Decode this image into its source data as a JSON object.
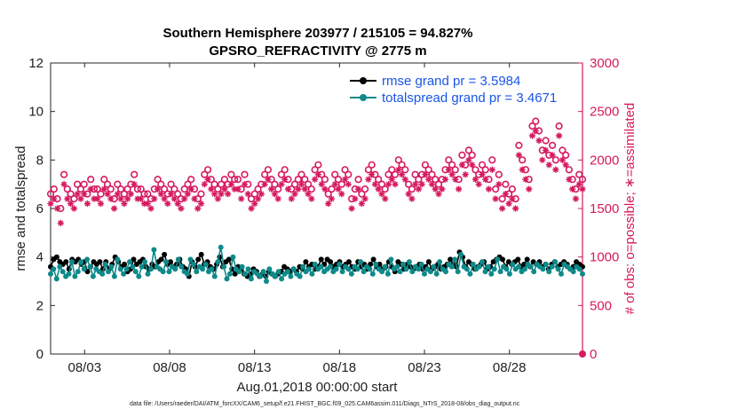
{
  "chart_data": {
    "type": "line",
    "title": "Southern Hemisphere 203977 / 215105 = 94.827%",
    "subtitle": "GPSRO_REFRACTIVITY @ 2775 m",
    "xlabel": "Aug.01,2018 00:00:00 start",
    "ylabel": "rmse and totalspread",
    "y2label": "# of obs: o=possible; ∗=assimilated",
    "footnote": "data file: /Users/raeder/DAI/ATM_forcXX/CAM6_setup/f.e21.FHIST_BGC.f09_025.CAM6assim.011/Diags_NTrS_2018-08/obs_diag_output.nc",
    "x_range_days": [
      1,
      32.3
    ],
    "ylim": [
      0,
      12
    ],
    "y2lim": [
      0,
      3000
    ],
    "x_ticks": [
      {
        "day": 3,
        "label": "08/03"
      },
      {
        "day": 8,
        "label": "08/08"
      },
      {
        "day": 13,
        "label": "08/13"
      },
      {
        "day": 18,
        "label": "08/18"
      },
      {
        "day": 23,
        "label": "08/23"
      },
      {
        "day": 28,
        "label": "08/28"
      }
    ],
    "y_ticks": [
      "0",
      "2",
      "4",
      "6",
      "8",
      "10",
      "12"
    ],
    "y2_ticks": [
      "0",
      "500",
      "1000",
      "1500",
      "2000",
      "2500",
      "3000"
    ],
    "legend_position": "top-right",
    "series": [
      {
        "name": "rmse grand pr = 3.5984",
        "color": "#000000",
        "marker": "dot",
        "axis": "left",
        "values": [
          3.6,
          3.9,
          4.0,
          3.8,
          3.7,
          3.8,
          3.5,
          3.9,
          3.8,
          3.9,
          3.7,
          3.8,
          3.4,
          3.6,
          3.8,
          3.7,
          3.8,
          3.5,
          3.8,
          3.5,
          3.7,
          4.0,
          3.8,
          3.6,
          3.7,
          3.4,
          3.5,
          3.9,
          3.7,
          3.8,
          3.9,
          3.6,
          3.5,
          3.7,
          3.6,
          3.8,
          3.9,
          4.1,
          3.7,
          3.8,
          3.6,
          3.7,
          3.9,
          3.6,
          3.5,
          3.2,
          3.8,
          3.6,
          3.9,
          4.1,
          3.7,
          3.8,
          3.6,
          3.5,
          3.7,
          4.0,
          3.6,
          3.8,
          3.9,
          3.5,
          3.3,
          3.6,
          3.5,
          3.3,
          3.2,
          3.3,
          3.5,
          3.4,
          3.2,
          3.3,
          3.2,
          3.4,
          3.3,
          3.2,
          3.3,
          3.4,
          3.6,
          3.5,
          3.4,
          3.5,
          3.4,
          3.6,
          3.5,
          3.8,
          3.6,
          3.7,
          3.5,
          3.6,
          3.9,
          3.7,
          3.9,
          3.8,
          3.6,
          3.7,
          3.8,
          3.6,
          3.7,
          3.8,
          3.6,
          3.5,
          3.8,
          3.6,
          3.7,
          3.5,
          3.7,
          3.9,
          3.6,
          3.7,
          3.5,
          3.6,
          3.8,
          3.6,
          3.4,
          3.8,
          3.7,
          3.5,
          3.7,
          3.6,
          3.5,
          3.6,
          3.7,
          3.5,
          3.6,
          3.8,
          3.5,
          3.6,
          3.7,
          3.5,
          3.6,
          3.7,
          3.9,
          3.7,
          3.6,
          4.2,
          4.0,
          3.6,
          3.8,
          3.7,
          3.5,
          3.6,
          3.7,
          3.8,
          3.5,
          3.6,
          3.8,
          3.9,
          4.0,
          3.9,
          3.6,
          3.8,
          3.7,
          3.8,
          3.9,
          3.6,
          3.7,
          3.9,
          3.6,
          3.8,
          3.7,
          3.8,
          3.6,
          3.7,
          3.5,
          3.7,
          3.8,
          3.6,
          3.7,
          3.8,
          3.7,
          3.5,
          3.6,
          3.8,
          3.7,
          3.6
        ]
      },
      {
        "name": "totalspread grand pr = 3.4671",
        "color": "#0e8a8a",
        "marker": "dot",
        "axis": "left",
        "values": [
          3.3,
          3.5,
          3.1,
          3.6,
          3.4,
          3.2,
          3.3,
          3.8,
          3.2,
          3.4,
          3.8,
          3.5,
          3.9,
          3.6,
          3.2,
          3.5,
          3.4,
          3.3,
          3.7,
          3.4,
          3.6,
          3.2,
          3.9,
          3.5,
          3.3,
          3.5,
          3.8,
          3.6,
          3.4,
          3.2,
          3.6,
          3.8,
          3.3,
          3.5,
          4.3,
          3.6,
          3.5,
          3.4,
          3.8,
          3.4,
          3.6,
          3.5,
          3.9,
          3.6,
          3.4,
          3.3,
          3.9,
          3.7,
          3.4,
          3.6,
          3.5,
          3.7,
          3.4,
          3.5,
          3.2,
          3.8,
          4.4,
          3.6,
          3.1,
          3.3,
          4.0,
          3.5,
          3.4,
          3.6,
          3.3,
          3.5,
          3.1,
          3.4,
          3.3,
          3.2,
          3.4,
          3.0,
          3.5,
          3.3,
          3.2,
          3.4,
          3.1,
          3.3,
          3.4,
          3.2,
          3.5,
          3.3,
          3.2,
          3.6,
          3.4,
          3.5,
          3.3,
          3.7,
          3.5,
          3.6,
          3.4,
          3.5,
          3.6,
          3.4,
          3.5,
          3.7,
          3.4,
          3.6,
          3.5,
          3.3,
          3.6,
          3.5,
          3.8,
          3.4,
          3.6,
          3.5,
          3.3,
          3.7,
          3.5,
          3.4,
          3.6,
          3.3,
          3.9,
          3.5,
          3.6,
          3.4,
          3.7,
          3.5,
          3.8,
          3.4,
          3.6,
          3.5,
          3.7,
          3.3,
          3.5,
          3.4,
          3.6,
          3.3,
          3.8,
          3.5,
          3.4,
          3.7,
          3.6,
          3.9,
          3.4,
          4.1,
          3.6,
          3.5,
          3.3,
          3.7,
          3.5,
          3.6,
          3.8,
          3.4,
          3.6,
          3.3,
          3.5,
          3.9,
          3.4,
          3.6,
          3.5,
          3.3,
          3.7,
          3.5,
          3.6,
          3.4,
          3.5,
          3.7,
          3.6,
          3.4,
          3.7,
          3.6,
          3.5,
          3.7,
          3.4,
          3.6,
          3.8,
          3.5,
          3.3,
          3.7,
          3.6,
          3.5,
          3.4,
          3.6,
          3.5,
          3.3
        ]
      },
      {
        "name": "possible",
        "color": "#d6195e",
        "marker": "circle",
        "axis": "right",
        "values": [
          1650,
          1700,
          1600,
          1500,
          1850,
          1700,
          1650,
          1600,
          1750,
          1700,
          1750,
          1650,
          1800,
          1700,
          1700,
          1650,
          1800,
          1750,
          1700,
          1600,
          1750,
          1700,
          1650,
          1700,
          1750,
          1850,
          1700,
          1700,
          1650,
          1650,
          1600,
          1700,
          1800,
          1750,
          1700,
          1650,
          1750,
          1700,
          1650,
          1600,
          1700,
          1750,
          1800,
          1700,
          1600,
          1650,
          1850,
          1900,
          1800,
          1750,
          1700,
          1750,
          1800,
          1750,
          1850,
          1800,
          1800,
          1700,
          1850,
          1750,
          1600,
          1650,
          1700,
          1750,
          1850,
          1900,
          1800,
          1750,
          1700,
          1850,
          1900,
          1800,
          1700,
          1750,
          1800,
          1850,
          1800,
          1750,
          1700,
          1900,
          1950,
          1850,
          1800,
          1650,
          1700,
          1850,
          1800,
          1750,
          1900,
          1850,
          1600,
          1700,
          1800,
          1650,
          1700,
          1900,
          1950,
          1850,
          1800,
          1750,
          1700,
          1850,
          1900,
          1850,
          2000,
          1950,
          1900,
          1750,
          1700,
          1850,
          1800,
          1850,
          1950,
          1900,
          1850,
          1800,
          1750,
          1800,
          1900,
          2000,
          1950,
          1900,
          1800,
          2050,
          1950,
          2100,
          2050,
          1900,
          1850,
          1950,
          1900,
          1800,
          2000,
          1700,
          1850,
          1600,
          1750,
          1650,
          1700,
          1600,
          2150,
          2000,
          1900,
          1800,
          2350,
          2400,
          2300,
          2100,
          2200,
          2050,
          2150,
          2000,
          2350,
          2100,
          2050,
          1900,
          1800,
          1700,
          1850,
          1800
        ]
      },
      {
        "name": "assimilated",
        "color": "#d6195e",
        "marker": "asterisk",
        "axis": "right",
        "values": [
          1550,
          1600,
          1500,
          1350,
          1750,
          1600,
          1550,
          1500,
          1650,
          1600,
          1650,
          1550,
          1700,
          1600,
          1600,
          1550,
          1700,
          1650,
          1600,
          1500,
          1650,
          1600,
          1550,
          1600,
          1650,
          1750,
          1600,
          1600,
          1550,
          1550,
          1500,
          1600,
          1700,
          1650,
          1600,
          1550,
          1650,
          1600,
          1550,
          1500,
          1600,
          1650,
          1700,
          1600,
          1500,
          1550,
          1750,
          1800,
          1700,
          1650,
          1600,
          1650,
          1700,
          1650,
          1750,
          1700,
          1700,
          1600,
          1750,
          1650,
          1500,
          1550,
          1600,
          1650,
          1750,
          1800,
          1700,
          1650,
          1600,
          1750,
          1800,
          1700,
          1600,
          1650,
          1700,
          1750,
          1700,
          1650,
          1600,
          1800,
          1850,
          1750,
          1700,
          1550,
          1600,
          1750,
          1700,
          1650,
          1800,
          1750,
          1500,
          1600,
          1700,
          1550,
          1600,
          1800,
          1850,
          1750,
          1700,
          1650,
          1600,
          1750,
          1800,
          1750,
          1900,
          1850,
          1800,
          1650,
          1600,
          1750,
          1700,
          1750,
          1850,
          1800,
          1750,
          1700,
          1650,
          1700,
          1800,
          1900,
          1850,
          1800,
          1700,
          1950,
          1850,
          2000,
          1950,
          1800,
          1750,
          1850,
          1800,
          1700,
          1900,
          1600,
          1750,
          1500,
          1650,
          1550,
          1600,
          1500,
          2050,
          1900,
          1800,
          1700,
          2250,
          2300,
          2200,
          2000,
          2100,
          1950,
          2050,
          1900,
          2250,
          2000,
          1950,
          1800,
          1700,
          1600,
          1750,
          1700
        ]
      }
    ]
  }
}
